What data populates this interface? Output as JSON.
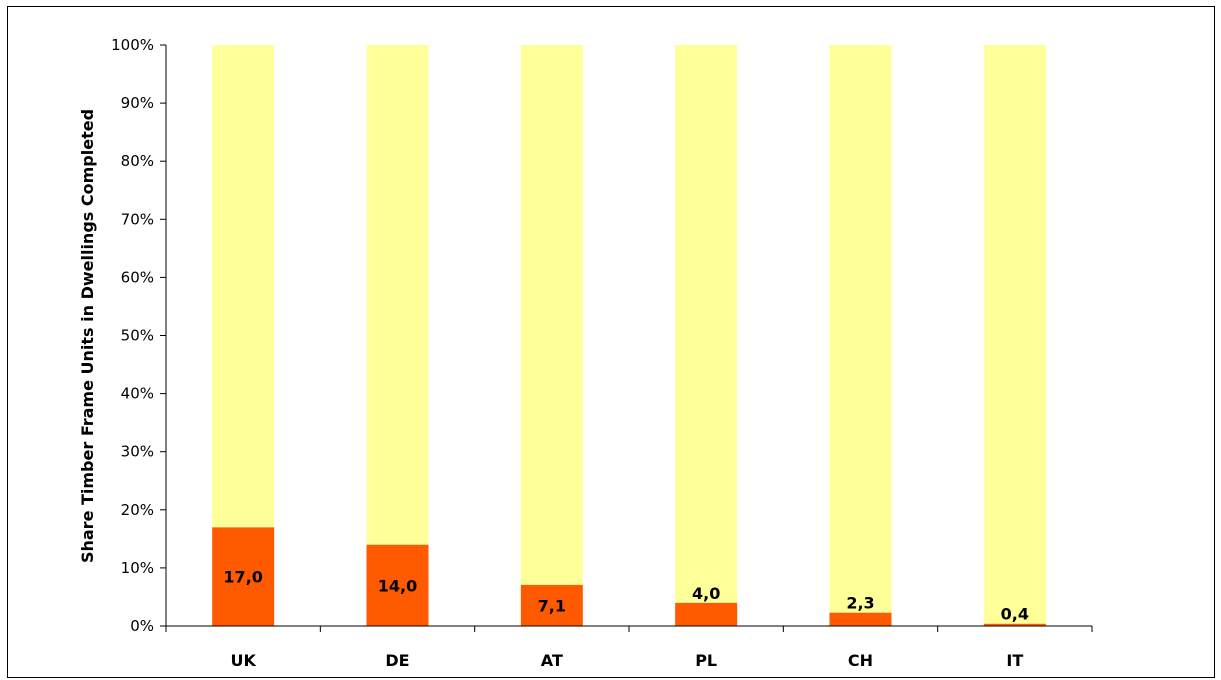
{
  "chart_data": {
    "type": "bar",
    "stacked": "percent",
    "ylabel": "Share Timber Frame Units in Dwellings Completed",
    "categories": [
      "UK",
      "DE",
      "AT",
      "PL",
      "CH",
      "IT"
    ],
    "series": [
      {
        "values": [
          17.0,
          14.0,
          7.1,
          4.0,
          2.3,
          0.4
        ],
        "color": "#ff5a00"
      },
      {
        "values": [
          83.0,
          86.0,
          92.9,
          96.0,
          97.7,
          99.6
        ],
        "color": "#ffff99"
      }
    ],
    "data_labels": [
      "17,0",
      "14,0",
      "7,1",
      "4,0",
      "2,3",
      "0,4"
    ],
    "yticks": [
      "0%",
      "10%",
      "20%",
      "30%",
      "40%",
      "50%",
      "60%",
      "70%",
      "80%",
      "90%",
      "100%"
    ],
    "ylim": [
      0,
      100
    ],
    "grid": false,
    "legend": "none"
  }
}
